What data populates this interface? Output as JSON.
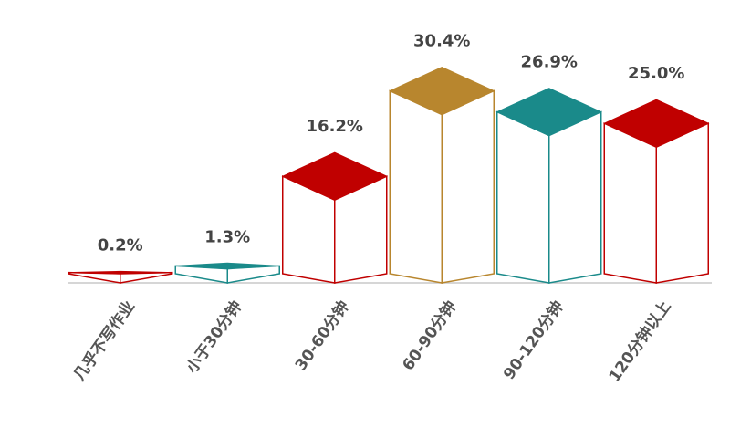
{
  "chart_data": {
    "type": "bar3d",
    "categories": [
      "几乎不写作业",
      "小于30分钟",
      "30-60分钟",
      "60-90分钟",
      "90-120分钟",
      "120分钟以上"
    ],
    "values": [
      0.2,
      1.3,
      16.2,
      30.4,
      26.9,
      25.0
    ],
    "value_labels": [
      "0.2%",
      "1.3%",
      "16.2%",
      "30.4%",
      "26.9%",
      "25.0%"
    ],
    "colors": [
      "#c00000",
      "#1a8a8a",
      "#c00000",
      "#b8862e",
      "#1a8a8a",
      "#c00000"
    ],
    "ylim": [
      0,
      32
    ]
  }
}
